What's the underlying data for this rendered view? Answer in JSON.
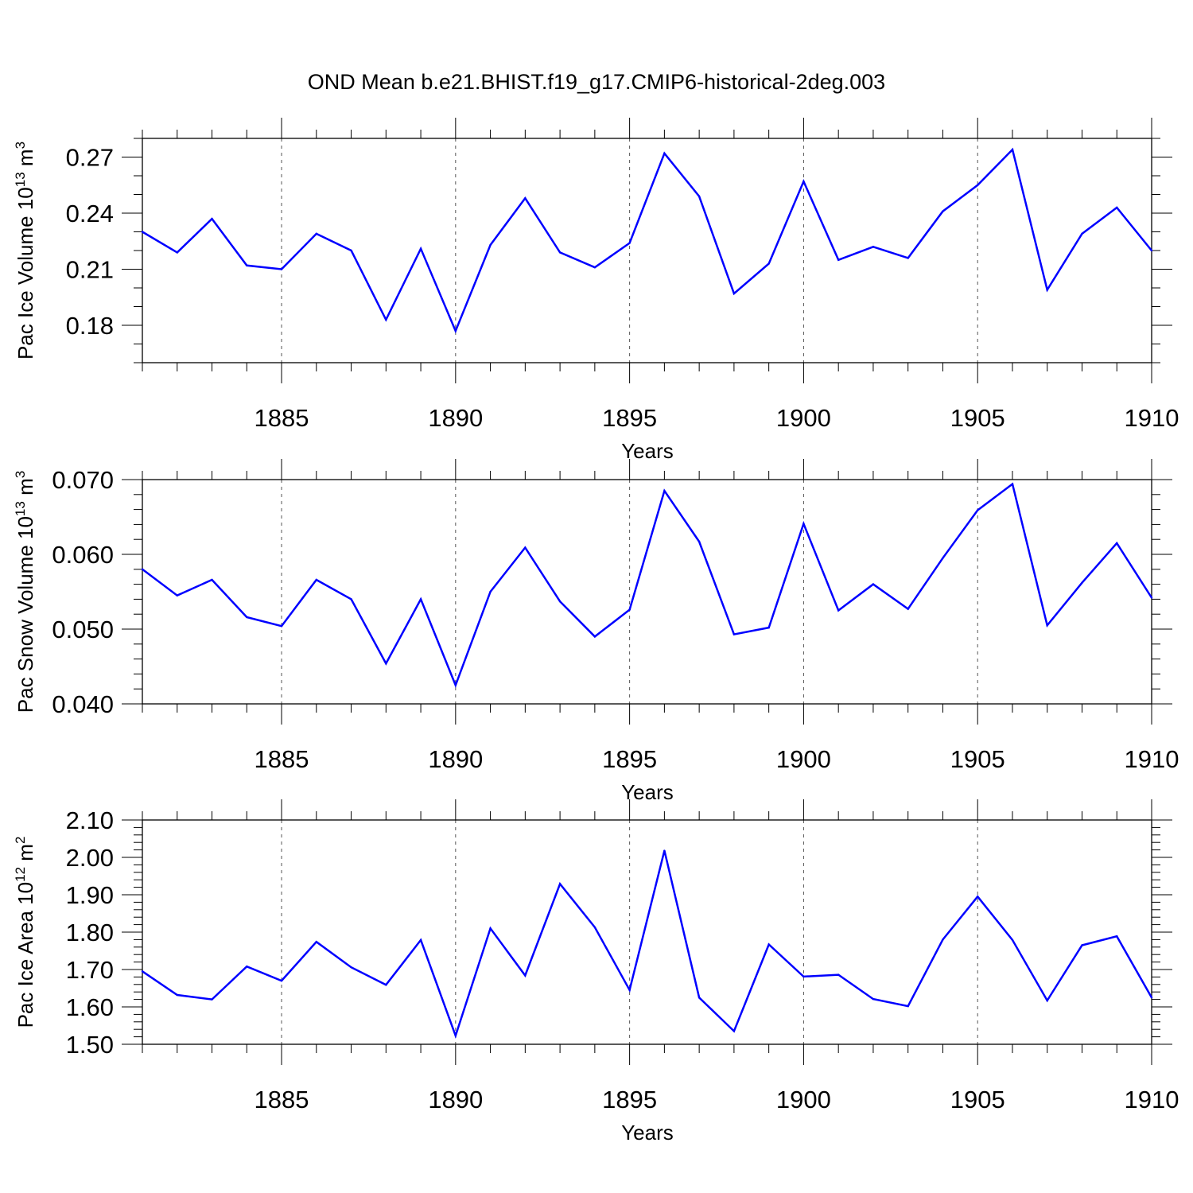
{
  "title": "OND Mean b.e21.BHIST.f19_g17.CMIP6-historical-2deg.003",
  "colors": {
    "line": "#0000ff",
    "axis": "#000000",
    "grid": "#555555"
  },
  "chart_data": [
    {
      "type": "line",
      "ylabel_main": "Pac Ice Volume 10",
      "ylabel_exp": "13",
      "ylabel_unit": " m",
      "ylabel_unit_exp": "3",
      "xlabel": "Years",
      "xlim": [
        1881,
        1910
      ],
      "ylim": [
        0.16,
        0.28
      ],
      "xticks": [
        1885,
        1890,
        1895,
        1900,
        1905,
        1910
      ],
      "xtick_labels": [
        "1885",
        "1890",
        "1895",
        "1900",
        "1905",
        "1910"
      ],
      "yticks": [
        0.18,
        0.21,
        0.24,
        0.27
      ],
      "ytick_labels": [
        "0.18",
        "0.21",
        "0.24",
        "0.27"
      ],
      "yminor_step": 0.01,
      "x": [
        1881,
        1882,
        1883,
        1884,
        1885,
        1886,
        1887,
        1888,
        1889,
        1890,
        1891,
        1892,
        1893,
        1894,
        1895,
        1896,
        1897,
        1898,
        1899,
        1900,
        1901,
        1902,
        1903,
        1904,
        1905,
        1906,
        1907,
        1908,
        1909,
        1910
      ],
      "values": [
        0.23,
        0.219,
        0.237,
        0.212,
        0.21,
        0.229,
        0.22,
        0.183,
        0.221,
        0.177,
        0.223,
        0.248,
        0.219,
        0.211,
        0.224,
        0.272,
        0.249,
        0.197,
        0.213,
        0.257,
        0.215,
        0.222,
        0.216,
        0.241,
        0.255,
        0.274,
        0.199,
        0.229,
        0.243,
        0.22
      ]
    },
    {
      "type": "line",
      "ylabel_main": "Pac Snow Volume 10",
      "ylabel_exp": "13",
      "ylabel_unit": " m",
      "ylabel_unit_exp": "3",
      "xlabel": "Years",
      "xlim": [
        1881,
        1910
      ],
      "ylim": [
        0.04,
        0.07
      ],
      "xticks": [
        1885,
        1890,
        1895,
        1900,
        1905,
        1910
      ],
      "xtick_labels": [
        "1885",
        "1890",
        "1895",
        "1900",
        "1905",
        "1910"
      ],
      "yticks": [
        0.04,
        0.05,
        0.06,
        0.07
      ],
      "ytick_labels": [
        "0.040",
        "0.050",
        "0.060",
        "0.070"
      ],
      "yminor_step": 0.002,
      "x": [
        1881,
        1882,
        1883,
        1884,
        1885,
        1886,
        1887,
        1888,
        1889,
        1890,
        1891,
        1892,
        1893,
        1894,
        1895,
        1896,
        1897,
        1898,
        1899,
        1900,
        1901,
        1902,
        1903,
        1904,
        1905,
        1906,
        1907,
        1908,
        1909,
        1910
      ],
      "values": [
        0.058,
        0.0545,
        0.0566,
        0.0516,
        0.0504,
        0.0566,
        0.054,
        0.0454,
        0.054,
        0.0425,
        0.055,
        0.0609,
        0.0537,
        0.049,
        0.0526,
        0.0685,
        0.0617,
        0.0493,
        0.0502,
        0.0641,
        0.0525,
        0.056,
        0.0527,
        0.0595,
        0.0659,
        0.0694,
        0.0505,
        0.0562,
        0.0615,
        0.0542
      ]
    },
    {
      "type": "line",
      "ylabel_main": "Pac Ice Area 10",
      "ylabel_exp": "12",
      "ylabel_unit": " m",
      "ylabel_unit_exp": "2",
      "xlabel": "Years",
      "xlim": [
        1881,
        1910
      ],
      "ylim": [
        1.5,
        2.1
      ],
      "xticks": [
        1885,
        1890,
        1895,
        1900,
        1905,
        1910
      ],
      "xtick_labels": [
        "1885",
        "1890",
        "1895",
        "1900",
        "1905",
        "1910"
      ],
      "yticks": [
        1.5,
        1.6,
        1.7,
        1.8,
        1.9,
        2.0,
        2.1
      ],
      "ytick_labels": [
        "1.50",
        "1.60",
        "1.70",
        "1.80",
        "1.90",
        "2.00",
        "2.10"
      ],
      "yminor_step": 0.02,
      "x": [
        1881,
        1882,
        1883,
        1884,
        1885,
        1886,
        1887,
        1888,
        1889,
        1890,
        1891,
        1892,
        1893,
        1894,
        1895,
        1896,
        1897,
        1898,
        1899,
        1900,
        1901,
        1902,
        1903,
        1904,
        1905,
        1906,
        1907,
        1908,
        1909,
        1910
      ],
      "values": [
        1.695,
        1.632,
        1.62,
        1.708,
        1.67,
        1.774,
        1.706,
        1.659,
        1.779,
        1.523,
        1.81,
        1.684,
        1.929,
        1.813,
        1.645,
        2.018,
        1.625,
        1.535,
        1.767,
        1.681,
        1.686,
        1.621,
        1.602,
        1.78,
        1.895,
        1.779,
        1.617,
        1.765,
        1.789,
        1.625
      ]
    }
  ]
}
